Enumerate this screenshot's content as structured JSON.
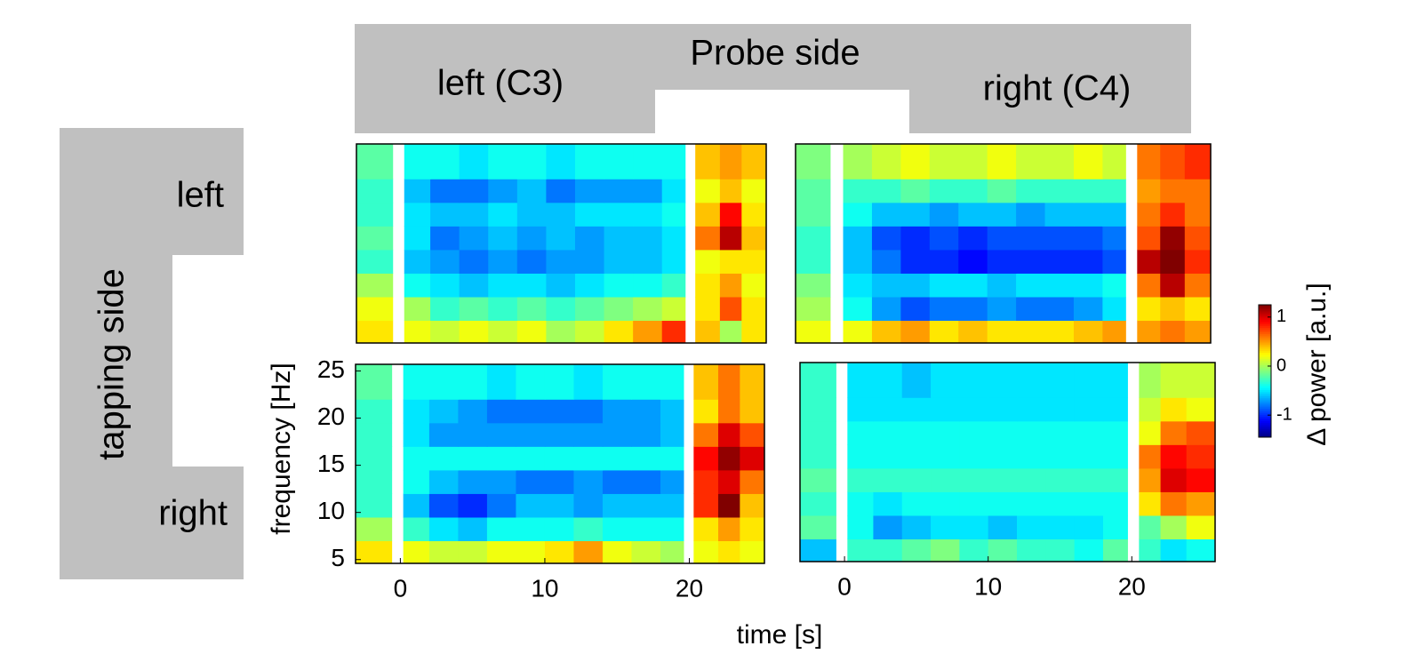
{
  "header": {
    "probe_side": "Probe side",
    "probe_left": "left (C3)",
    "probe_right": "right (C4)",
    "tapping_side": "tapping side",
    "tap_left": "left",
    "tap_right": "right"
  },
  "xlabel": "time [s]",
  "ylabel": "frequency [Hz]",
  "colorbar": {
    "label": "Δ power [a.u.]",
    "lim": [
      -1.45,
      1.25
    ],
    "ticks": [
      -1,
      0,
      1
    ]
  },
  "chart_data": [
    {
      "type": "heatmap",
      "xlim": [
        -3.1,
        25.2
      ],
      "ylim": [
        4.6,
        25.7
      ],
      "xbins": [
        -3.1,
        -0.6,
        0.2,
        2,
        4,
        6,
        8,
        10,
        12,
        14,
        16,
        18,
        19.6,
        20.3,
        22,
        23.5,
        25.2
      ],
      "ybins": [
        4.6,
        7,
        9.5,
        12,
        14.5,
        17,
        19.5,
        22,
        25.7
      ],
      "z": [
        [
          0.3,
          null,
          0.2,
          0.1,
          0.2,
          0.1,
          0.2,
          0,
          0.1,
          0.3,
          0.5,
          0.8,
          null,
          0.4,
          0,
          0.3
        ],
        [
          0.2,
          null,
          0,
          -0.3,
          -0.2,
          -0.3,
          -0.2,
          -0.3,
          -0.2,
          -0.1,
          0,
          0.1,
          null,
          0.3,
          0.7,
          0.3
        ],
        [
          0,
          null,
          -0.4,
          -0.5,
          -0.6,
          -0.5,
          -0.5,
          -0.6,
          -0.5,
          -0.4,
          -0.4,
          -0.3,
          null,
          0.3,
          0.5,
          0.2
        ],
        [
          -0.3,
          null,
          -0.6,
          -0.7,
          -0.8,
          -0.7,
          -0.8,
          -0.7,
          -0.7,
          -0.6,
          -0.6,
          -0.5,
          null,
          0.2,
          0.3,
          0.3
        ],
        [
          -0.2,
          null,
          -0.5,
          -0.8,
          -0.7,
          -0.6,
          -0.7,
          -0.6,
          -0.7,
          -0.6,
          -0.6,
          -0.5,
          null,
          0.6,
          1.1,
          0.4
        ],
        [
          -0.3,
          null,
          -0.5,
          -0.6,
          -0.6,
          -0.5,
          -0.6,
          -0.6,
          -0.5,
          -0.5,
          -0.5,
          -0.4,
          null,
          0.4,
          0.9,
          0.3
        ],
        [
          -0.3,
          null,
          -0.6,
          -0.8,
          -0.8,
          -0.7,
          -0.6,
          -0.8,
          -0.7,
          -0.7,
          -0.7,
          -0.5,
          null,
          0.2,
          0.4,
          0.2
        ],
        [
          -0.2,
          null,
          -0.4,
          -0.4,
          -0.5,
          -0.4,
          -0.4,
          -0.5,
          -0.4,
          -0.4,
          -0.4,
          -0.4,
          null,
          0.4,
          0.5,
          0.4
        ]
      ]
    },
    {
      "type": "heatmap",
      "xlim": [
        -3.3,
        25.5
      ],
      "ylim": [
        4.6,
        25.7
      ],
      "xbins": [
        -3.3,
        -0.9,
        0,
        2,
        4,
        6,
        8,
        10,
        12,
        14,
        16,
        18,
        19.6,
        20.4,
        22,
        23.7,
        25.5
      ],
      "ybins": [
        4.6,
        7,
        9.5,
        12,
        14.5,
        17,
        19.5,
        22,
        25.7
      ],
      "z": [
        [
          0.2,
          null,
          0.2,
          0.4,
          0.5,
          0.3,
          0.4,
          0.3,
          0.3,
          0.3,
          0.4,
          0.5,
          null,
          0.5,
          0.6,
          0.5
        ],
        [
          0,
          null,
          -0.4,
          -0.7,
          -0.9,
          -0.8,
          -0.8,
          -0.7,
          -0.8,
          -0.8,
          -0.7,
          -0.5,
          null,
          0.3,
          0.4,
          0.3
        ],
        [
          -0.1,
          null,
          -0.5,
          -0.6,
          -0.6,
          -0.5,
          -0.5,
          -0.6,
          -0.5,
          -0.5,
          -0.5,
          -0.4,
          null,
          0.6,
          1.1,
          0.6
        ],
        [
          -0.3,
          null,
          -0.6,
          -0.8,
          -1.0,
          -1.0,
          -1.1,
          -1.0,
          -1.0,
          -1.0,
          -1.0,
          -0.9,
          null,
          1.1,
          1.25,
          0.8
        ],
        [
          -0.3,
          null,
          -0.6,
          -0.9,
          -1.0,
          -0.9,
          -1.0,
          -0.9,
          -0.9,
          -0.9,
          -0.9,
          -0.8,
          null,
          0.7,
          1.2,
          0.7
        ],
        [
          -0.2,
          null,
          -0.4,
          -0.6,
          -0.6,
          -0.7,
          -0.6,
          -0.6,
          -0.7,
          -0.6,
          -0.6,
          -0.6,
          null,
          0.6,
          0.8,
          0.6
        ],
        [
          -0.2,
          null,
          -0.3,
          -0.3,
          -0.2,
          -0.3,
          -0.3,
          -0.2,
          -0.3,
          -0.3,
          -0.3,
          -0.3,
          null,
          0.5,
          0.6,
          0.6
        ],
        [
          -0.1,
          null,
          0,
          0.1,
          0.2,
          0.1,
          0.1,
          0.2,
          0.1,
          0.1,
          0.2,
          0.1,
          null,
          0.6,
          0.7,
          0.8
        ]
      ]
    },
    {
      "type": "heatmap",
      "xlim": [
        -3.1,
        25.2
      ],
      "ylim": [
        4.6,
        25.7
      ],
      "xticks": [
        0,
        10,
        20
      ],
      "yticks": [
        5,
        10,
        15,
        20,
        25
      ],
      "xbins": [
        -3.1,
        -0.6,
        0.2,
        2,
        4,
        6,
        8,
        10,
        12,
        14,
        16,
        18,
        19.6,
        20.3,
        22,
        23.5,
        25.2
      ],
      "ybins": [
        4.6,
        7,
        9.5,
        12,
        14.5,
        17,
        19.5,
        22,
        25.7
      ],
      "z": [
        [
          0.3,
          null,
          0.2,
          0.1,
          0.1,
          0.2,
          0.2,
          0.3,
          0.5,
          0.2,
          0.1,
          0,
          null,
          0.2,
          0.3,
          0.2
        ],
        [
          0,
          null,
          -0.3,
          -0.5,
          -0.6,
          -0.4,
          -0.4,
          -0.4,
          -0.3,
          -0.4,
          -0.4,
          -0.4,
          null,
          0.3,
          0.5,
          0.3
        ],
        [
          -0.3,
          null,
          -0.6,
          -0.9,
          -1.0,
          -0.8,
          -0.6,
          -0.6,
          -0.7,
          -0.6,
          -0.6,
          -0.6,
          null,
          0.8,
          1.25,
          0.4
        ],
        [
          -0.3,
          null,
          -0.4,
          -0.6,
          -0.7,
          -0.7,
          -0.8,
          -0.8,
          -0.7,
          -0.8,
          -0.8,
          -0.7,
          null,
          0.8,
          1.0,
          0.6
        ],
        [
          -0.3,
          null,
          -0.4,
          -0.4,
          -0.4,
          -0.4,
          -0.4,
          -0.4,
          -0.4,
          -0.4,
          -0.4,
          -0.4,
          null,
          0.9,
          1.2,
          1.0
        ],
        [
          -0.3,
          null,
          -0.5,
          -0.7,
          -0.7,
          -0.7,
          -0.7,
          -0.7,
          -0.7,
          -0.7,
          -0.7,
          -0.6,
          null,
          0.6,
          1.0,
          0.7
        ],
        [
          -0.3,
          null,
          -0.5,
          -0.6,
          -0.7,
          -0.8,
          -0.8,
          -0.8,
          -0.8,
          -0.7,
          -0.7,
          -0.6,
          null,
          0.3,
          0.6,
          0.4
        ],
        [
          -0.2,
          null,
          -0.4,
          -0.4,
          -0.4,
          -0.5,
          -0.4,
          -0.4,
          -0.5,
          -0.4,
          -0.4,
          -0.4,
          null,
          0.4,
          0.6,
          0.4
        ]
      ]
    },
    {
      "type": "heatmap",
      "xlim": [
        -3.1,
        25.8
      ],
      "ylim": [
        4.6,
        25.7
      ],
      "xticks": [
        0,
        10,
        20
      ],
      "xbins": [
        -3.1,
        -0.6,
        0.2,
        2,
        4,
        6,
        8,
        10,
        12,
        14,
        16,
        18,
        19.7,
        20.5,
        22,
        23.8,
        25.8
      ],
      "ybins": [
        4.6,
        7,
        9.5,
        12,
        14.5,
        17,
        19.5,
        22,
        25.7
      ],
      "z": [
        [
          -0.6,
          null,
          -0.3,
          -0.3,
          -0.2,
          -0.1,
          -0.3,
          -0.2,
          -0.3,
          -0.3,
          -0.4,
          -0.2,
          null,
          -0.3,
          -0.5,
          -0.4
        ],
        [
          -0.2,
          null,
          -0.4,
          -0.7,
          -0.6,
          -0.5,
          -0.5,
          -0.6,
          -0.5,
          -0.5,
          -0.5,
          -0.4,
          null,
          -0.2,
          0,
          0.2
        ],
        [
          -0.3,
          null,
          -0.4,
          -0.5,
          -0.4,
          -0.4,
          -0.4,
          -0.4,
          -0.4,
          -0.4,
          -0.4,
          -0.4,
          null,
          0.3,
          0.6,
          0.5
        ],
        [
          -0.2,
          null,
          -0.3,
          -0.3,
          -0.3,
          -0.3,
          -0.3,
          -0.3,
          -0.3,
          -0.3,
          -0.3,
          -0.3,
          null,
          0.5,
          1.0,
          0.9
        ],
        [
          -0.3,
          null,
          -0.4,
          -0.4,
          -0.4,
          -0.4,
          -0.4,
          -0.4,
          -0.4,
          -0.4,
          -0.4,
          -0.4,
          null,
          0.6,
          0.9,
          0.8
        ],
        [
          -0.3,
          null,
          -0.4,
          -0.4,
          -0.4,
          -0.4,
          -0.4,
          -0.4,
          -0.4,
          -0.4,
          -0.4,
          -0.4,
          null,
          0.2,
          0.6,
          0.7
        ],
        [
          -0.3,
          null,
          -0.5,
          -0.5,
          -0.5,
          -0.5,
          -0.5,
          -0.5,
          -0.5,
          -0.5,
          -0.5,
          -0.5,
          null,
          0.1,
          0.3,
          0.2
        ],
        [
          -0.3,
          null,
          -0.5,
          -0.5,
          -0.6,
          -0.5,
          -0.5,
          -0.5,
          -0.5,
          -0.5,
          -0.5,
          -0.5,
          null,
          0,
          0.1,
          0.1
        ]
      ]
    }
  ]
}
